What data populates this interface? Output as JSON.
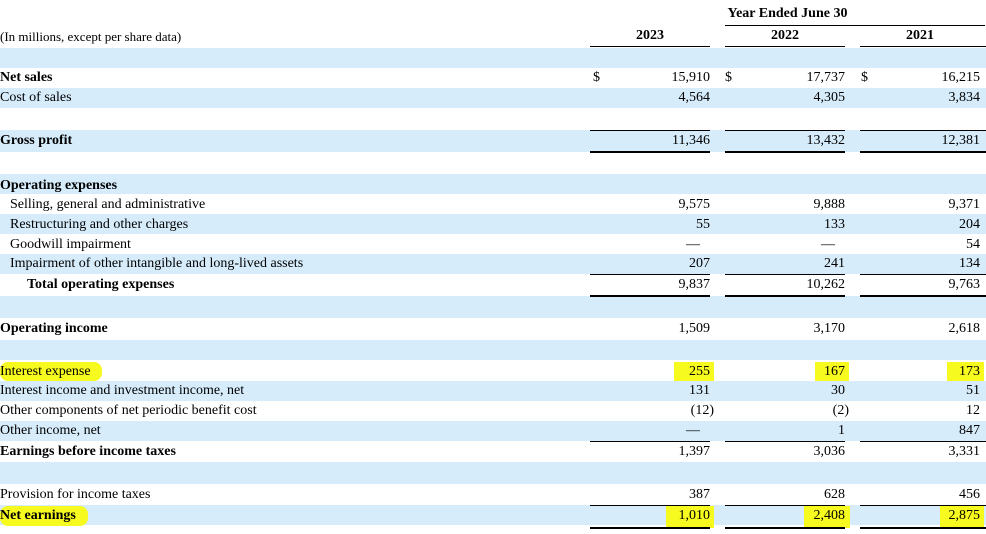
{
  "header": {
    "period_title": "Year Ended June 30",
    "unit_note": "(In millions, except per share data)",
    "years": [
      "2023",
      "2022",
      "2021"
    ]
  },
  "currency_symbol": "$",
  "rows": {
    "net_sales": {
      "label": "Net sales",
      "values": [
        "15,910",
        "17,737",
        "16,215"
      ]
    },
    "cost_of_sales": {
      "label": "Cost of sales",
      "values": [
        "4,564",
        "4,305",
        "3,834"
      ]
    },
    "gross_profit": {
      "label": "Gross profit",
      "values": [
        "11,346",
        "13,432",
        "12,381"
      ]
    },
    "operating_expenses": {
      "label": "Operating expenses"
    },
    "sga": {
      "label": "Selling, general and administrative",
      "values": [
        "9,575",
        "9,888",
        "9,371"
      ]
    },
    "restructuring": {
      "label": "Restructuring and other charges",
      "values": [
        "55",
        "133",
        "204"
      ]
    },
    "goodwill": {
      "label": "Goodwill impairment",
      "values": [
        "—",
        "—",
        "54"
      ]
    },
    "impairment_other": {
      "label": "Impairment of other intangible and long-lived assets",
      "values": [
        "207",
        "241",
        "134"
      ]
    },
    "total_opex": {
      "label": "Total operating expenses",
      "values": [
        "9,837",
        "10,262",
        "9,763"
      ]
    },
    "operating_income": {
      "label": "Operating income",
      "values": [
        "1,509",
        "3,170",
        "2,618"
      ]
    },
    "interest_expense": {
      "label": "Interest expense",
      "values": [
        "255",
        "167",
        "173"
      ]
    },
    "interest_income": {
      "label": "Interest income and investment income, net",
      "values": [
        "131",
        "30",
        "51"
      ]
    },
    "other_components": {
      "label": "Other components of net periodic benefit cost",
      "values": [
        "(12)",
        "(2)",
        "12"
      ]
    },
    "other_income": {
      "label": "Other income, net",
      "values": [
        "—",
        "1",
        "847"
      ]
    },
    "ebt": {
      "label": "Earnings before income taxes",
      "values": [
        "1,397",
        "3,036",
        "3,331"
      ]
    },
    "provision": {
      "label": "Provision for income taxes",
      "values": [
        "387",
        "628",
        "456"
      ]
    },
    "net_earnings": {
      "label": "Net earnings",
      "values": [
        "1,010",
        "2,408",
        "2,875"
      ]
    }
  },
  "colors": {
    "band": "#d6ecfb",
    "highlight": "#f7fa1e"
  }
}
